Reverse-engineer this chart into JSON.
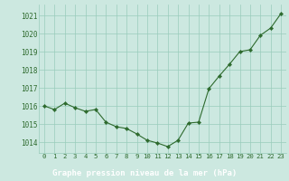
{
  "x": [
    0,
    1,
    2,
    3,
    4,
    5,
    6,
    7,
    8,
    9,
    10,
    11,
    12,
    13,
    14,
    15,
    16,
    17,
    18,
    19,
    20,
    21,
    22,
    23
  ],
  "y": [
    1016.0,
    1015.8,
    1016.15,
    1015.9,
    1015.7,
    1015.8,
    1015.1,
    1014.85,
    1014.75,
    1014.45,
    1014.1,
    1013.95,
    1013.75,
    1014.1,
    1015.05,
    1015.1,
    1016.95,
    1017.65,
    1018.3,
    1019.0,
    1019.1,
    1019.9,
    1020.3,
    1021.1
  ],
  "line_color": "#2d6a2d",
  "marker_color": "#2d6a2d",
  "bg_color": "#cce8e0",
  "grid_color": "#99ccbb",
  "xlabel": "Graphe pression niveau de la mer (hPa)",
  "xlabel_color": "#ffffff",
  "xlabel_bg": "#336633",
  "tick_color": "#2d6a2d",
  "ylim": [
    1013.4,
    1021.6
  ],
  "yticks": [
    1014,
    1015,
    1016,
    1017,
    1018,
    1019,
    1020,
    1021
  ],
  "xticks": [
    0,
    1,
    2,
    3,
    4,
    5,
    6,
    7,
    8,
    9,
    10,
    11,
    12,
    13,
    14,
    15,
    16,
    17,
    18,
    19,
    20,
    21,
    22,
    23
  ],
  "figsize": [
    3.2,
    2.0
  ],
  "dpi": 100
}
